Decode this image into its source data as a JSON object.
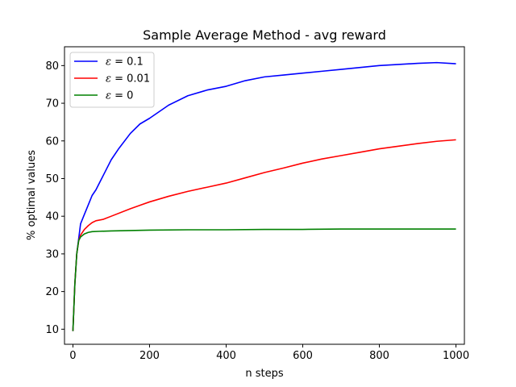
{
  "chart_data": {
    "type": "line",
    "title": "Sample Average Method - avg reward",
    "xlabel": "n steps",
    "ylabel": "% optimal values",
    "xlim": [
      -22,
      1022
    ],
    "ylim": [
      6,
      85
    ],
    "xticks": [
      0,
      200,
      400,
      600,
      800,
      1000
    ],
    "yticks": [
      10,
      20,
      30,
      40,
      50,
      60,
      70,
      80
    ],
    "grid": false,
    "legend_position": "upper-left",
    "series": [
      {
        "name": "ε = 0.1",
        "label_symbol": "ε",
        "label_value": "= 0.1",
        "color": "#0000ff",
        "x": [
          0,
          5,
          10,
          15,
          20,
          30,
          40,
          50,
          60,
          70,
          80,
          100,
          120,
          150,
          175,
          200,
          250,
          300,
          350,
          400,
          450,
          500,
          550,
          600,
          650,
          700,
          750,
          800,
          850,
          900,
          950,
          1000
        ],
        "y": [
          9.5,
          22,
          30,
          34,
          38,
          40.5,
          43,
          45.5,
          47,
          49,
          51,
          55,
          58,
          62,
          64.5,
          66,
          69.5,
          72,
          73.5,
          74.5,
          76,
          77,
          77.5,
          78,
          78.5,
          79,
          79.5,
          80,
          80.3,
          80.6,
          80.8,
          80.5
        ]
      },
      {
        "name": "ε = 0.01",
        "label_symbol": "ε",
        "label_value": "= 0.01",
        "color": "#ff0000",
        "x": [
          0,
          5,
          10,
          15,
          20,
          30,
          40,
          50,
          60,
          80,
          100,
          150,
          200,
          250,
          300,
          350,
          400,
          450,
          500,
          550,
          600,
          650,
          700,
          750,
          800,
          850,
          900,
          950,
          1000
        ],
        "y": [
          9.5,
          22,
          30,
          33.5,
          35,
          36.5,
          37.5,
          38.3,
          38.8,
          39.2,
          40,
          42,
          43.8,
          45.3,
          46.6,
          47.7,
          48.8,
          50.2,
          51.6,
          52.8,
          54.1,
          55.2,
          56.1,
          57,
          57.9,
          58.6,
          59.3,
          59.9,
          60.3
        ]
      },
      {
        "name": "ε = 0",
        "label_symbol": "ε",
        "label_value": "= 0",
        "color": "#008000",
        "x": [
          0,
          5,
          10,
          15,
          20,
          30,
          40,
          50,
          70,
          100,
          150,
          200,
          300,
          400,
          500,
          600,
          700,
          800,
          900,
          1000
        ],
        "y": [
          9.5,
          22,
          30,
          33.5,
          34.5,
          35.3,
          35.7,
          35.9,
          36,
          36.1,
          36.2,
          36.3,
          36.4,
          36.4,
          36.5,
          36.5,
          36.6,
          36.6,
          36.6,
          36.6
        ]
      }
    ]
  }
}
